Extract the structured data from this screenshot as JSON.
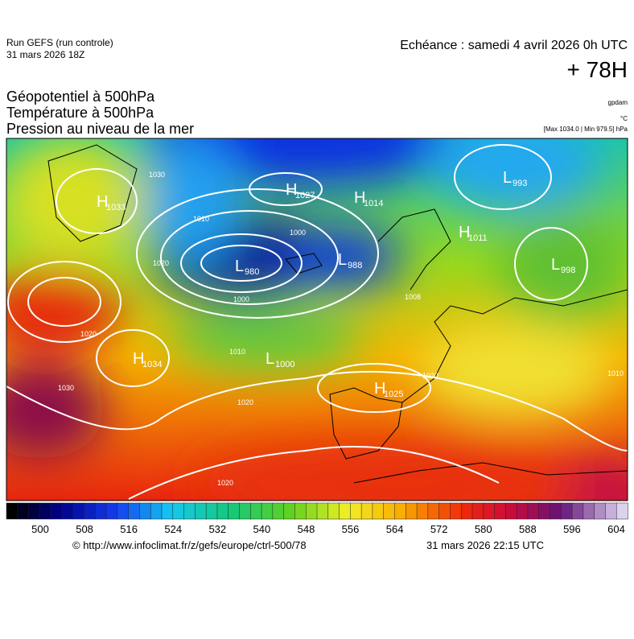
{
  "header": {
    "run": "Run GEFS (run controle)",
    "run_date": "31 mars 2026 18Z",
    "valid": "Echéance : samedi 4 avril 2026 0h UTC",
    "lead": "+ 78H"
  },
  "fields": [
    "Géopotentiel à 500hPa",
    "Température à 500hPa",
    "Pression au niveau de la mer"
  ],
  "units": {
    "geopotential": "gpdam",
    "temperature": "°C",
    "pressure": "[Max 1034.0 | Min 979.5] hPa"
  },
  "centers": [
    {
      "type": "H",
      "value": "1033"
    },
    {
      "type": "H",
      "value": "1027"
    },
    {
      "type": "H",
      "value": "1014"
    },
    {
      "type": "L",
      "value": "993"
    },
    {
      "type": "L",
      "value": "980"
    },
    {
      "type": "L",
      "value": "988"
    },
    {
      "type": "H",
      "value": "1011"
    },
    {
      "type": "L",
      "value": "998"
    },
    {
      "type": "H",
      "value": "1034"
    },
    {
      "type": "L",
      "value": "1000"
    },
    {
      "type": "H",
      "value": "1025"
    }
  ],
  "isobar_labels": [
    "1030",
    "1010",
    "1000",
    "1000",
    "1020",
    "1020",
    "1030",
    "1020",
    "1020",
    "1010",
    "1008",
    "1020",
    "1010"
  ],
  "colorbar": {
    "ticks": [
      500,
      508,
      516,
      524,
      532,
      540,
      548,
      556,
      564,
      572,
      580,
      588,
      596,
      604
    ]
  },
  "footer": {
    "url": "© http://www.infoclimat.fr/z/gefs/europe/ctrl-500/78",
    "generated": "31 mars 2026 22:15 UTC"
  }
}
